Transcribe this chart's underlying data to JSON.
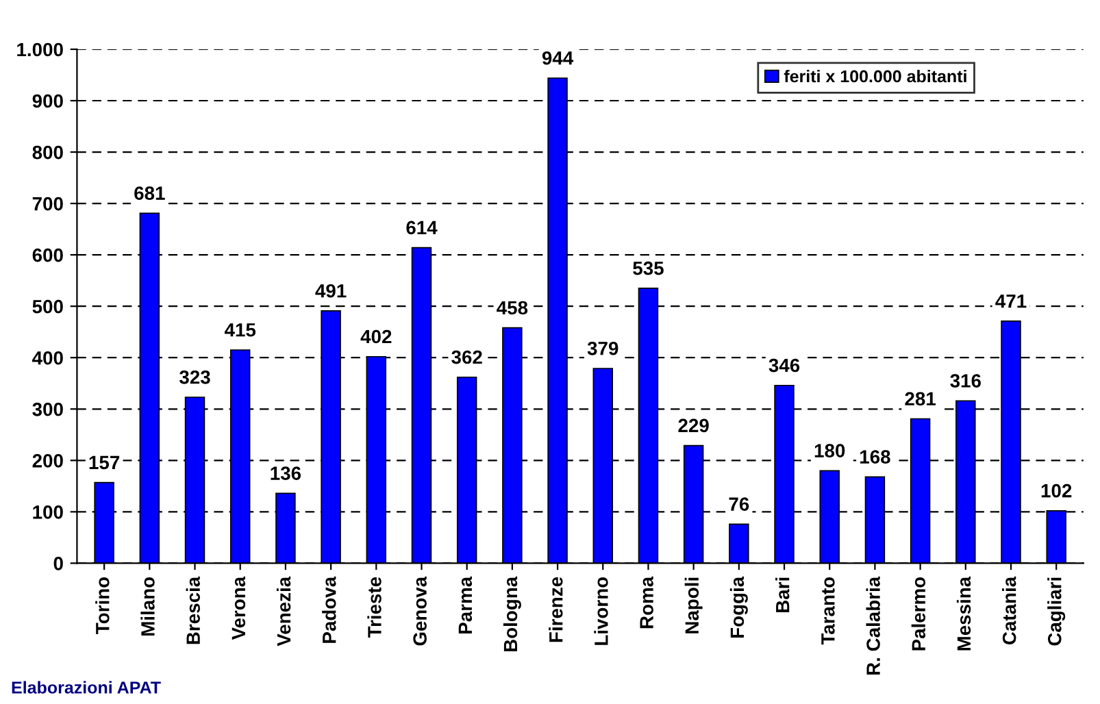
{
  "chart_data": {
    "type": "bar",
    "categories": [
      "Torino",
      "Milano",
      "Brescia",
      "Verona",
      "Venezia",
      "Padova",
      "Trieste",
      "Genova",
      "Parma",
      "Bologna",
      "Firenze",
      "Livorno",
      "Roma",
      "Napoli",
      "Foggia",
      "Bari",
      "Taranto",
      "R. Calabria",
      "Palermo",
      "Messina",
      "Catania",
      "Cagliari"
    ],
    "series": [
      {
        "name": "feriti x 100.000 abitanti",
        "color": "#0000ff",
        "values": [
          157,
          681,
          323,
          415,
          136,
          491,
          402,
          614,
          362,
          458,
          944,
          379,
          535,
          229,
          76,
          346,
          180,
          168,
          281,
          316,
          471,
          102
        ]
      }
    ],
    "ylim": [
      0,
      1000
    ],
    "yticks": [
      0,
      100,
      200,
      300,
      400,
      500,
      600,
      700,
      800,
      900,
      {
        "value": 1000,
        "label": "1.000"
      }
    ],
    "grid": "y",
    "line_style": "dashed",
    "legend": "top right",
    "data_labels": true,
    "annotations": [
      "Elaborazioni APAT"
    ]
  }
}
